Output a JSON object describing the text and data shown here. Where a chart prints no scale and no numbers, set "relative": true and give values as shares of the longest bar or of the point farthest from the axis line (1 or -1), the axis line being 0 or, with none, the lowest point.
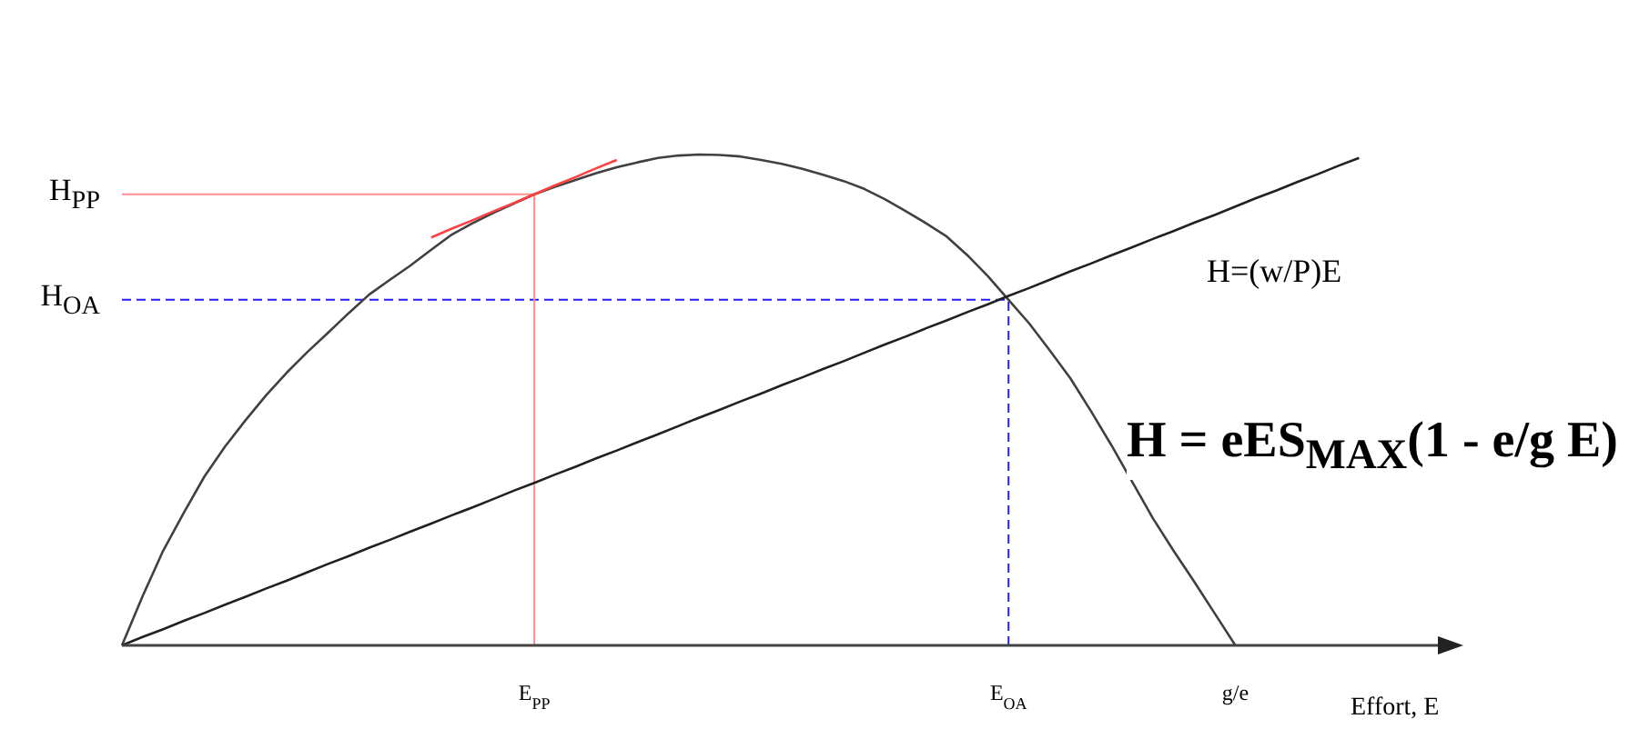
{
  "chart_data": {
    "type": "line",
    "relative": true,
    "xlabel": "Effort, E",
    "categories": [
      null,
      null,
      null,
      null,
      null,
      null,
      null,
      null,
      null,
      null,
      null,
      null,
      null,
      null,
      null,
      null,
      null,
      null,
      null,
      null,
      "E$_{PP}$",
      null,
      null,
      null,
      null,
      null,
      null,
      null,
      null,
      null,
      null,
      null,
      null,
      null,
      null,
      null,
      null,
      null,
      null,
      null,
      null,
      null,
      null,
      "E$_{OA}$",
      null,
      null,
      null,
      null,
      null,
      null,
      null,
      null,
      null,
      null,
      "g/e",
      null,
      null,
      null,
      null,
      null,
      null,
      null,
      null,
      null,
      null
    ],
    "marker": "none",
    "series": [
      {
        "color": "#404040",
        "values": [
          0,
          0.1,
          0.193,
          0.27,
          0.344,
          0.405,
          0.459,
          0.51,
          0.556,
          0.598,
          0.637,
          0.677,
          0.715,
          0.745,
          0.774,
          0.806,
          0.837,
          0.86,
          0.881,
          0.9,
          0.919,
          0.934,
          0.948,
          0.962,
          0.974,
          0.984,
          0.993,
          0.998,
          1.0,
          0.999,
          0.996,
          0.989,
          0.981,
          0.971,
          0.959,
          0.946,
          0.93,
          0.909,
          0.885,
          0.86,
          0.833,
          0.795,
          0.752,
          0.704,
          0.656,
          0.601,
          0.544,
          0.477,
          0.407,
          0.333,
          0.259,
          0.193,
          0.13,
          0.065,
          0,
          null,
          null,
          null,
          null,
          null,
          null,
          null,
          null,
          null,
          null
        ]
      },
      {
        "color": "#202020",
        "values": [
          0,
          0.017,
          0.033,
          0.05,
          0.066,
          0.083,
          0.099,
          0.116,
          0.132,
          0.149,
          0.166,
          0.182,
          0.199,
          0.215,
          0.232,
          0.248,
          0.265,
          0.281,
          0.298,
          0.315,
          0.331,
          0.348,
          0.364,
          0.381,
          0.397,
          0.414,
          0.43,
          0.447,
          0.464,
          0.48,
          0.497,
          0.513,
          0.53,
          0.546,
          0.563,
          0.579,
          0.596,
          0.613,
          0.629,
          0.646,
          0.662,
          0.679,
          0.695,
          0.712,
          0.728,
          0.745,
          0.762,
          0.778,
          0.795,
          0.811,
          0.828,
          0.844,
          0.861,
          0.877,
          0.894,
          0.911,
          0.927,
          0.944,
          0.96,
          0.977,
          0.993,
          null,
          null,
          null,
          null
        ]
      },
      {
        "color": "#ff4040",
        "values": [
          null,
          null,
          null,
          null,
          null,
          null,
          null,
          null,
          null,
          null,
          null,
          null,
          null,
          null,
          null,
          0.831,
          0.849,
          0.866,
          0.884,
          0.901,
          0.919,
          0.937,
          0.954,
          0.972,
          0.989,
          null,
          null,
          null,
          null,
          null,
          null,
          null,
          null,
          null,
          null,
          null,
          null,
          null,
          null,
          null,
          null,
          null,
          null,
          null,
          null,
          null,
          null,
          null,
          null,
          null,
          null,
          null,
          null,
          null,
          null,
          null,
          null,
          null,
          null,
          null,
          null,
          null,
          null,
          null,
          null
        ]
      }
    ],
    "ref_lines": [
      {
        "axis": "y",
        "value": 0.919,
        "label": "H$_{PP}$",
        "color": "#ff9090"
      },
      {
        "axis": "y",
        "value": 0.704,
        "label": "H$_{OA}$",
        "color": "#2020ff",
        "line_style": "dashed"
      },
      {
        "axis": "x",
        "value": "E$_{PP}$",
        "color": "#ff9090"
      },
      {
        "axis": "x",
        "value": "E$_{OA}$",
        "color": "#2020ff",
        "line_style": "dashed"
      }
    ],
    "annotations": [
      "H=(w/P)E",
      "H = eES$_{MAX}$(1 - e/g E)"
    ]
  }
}
